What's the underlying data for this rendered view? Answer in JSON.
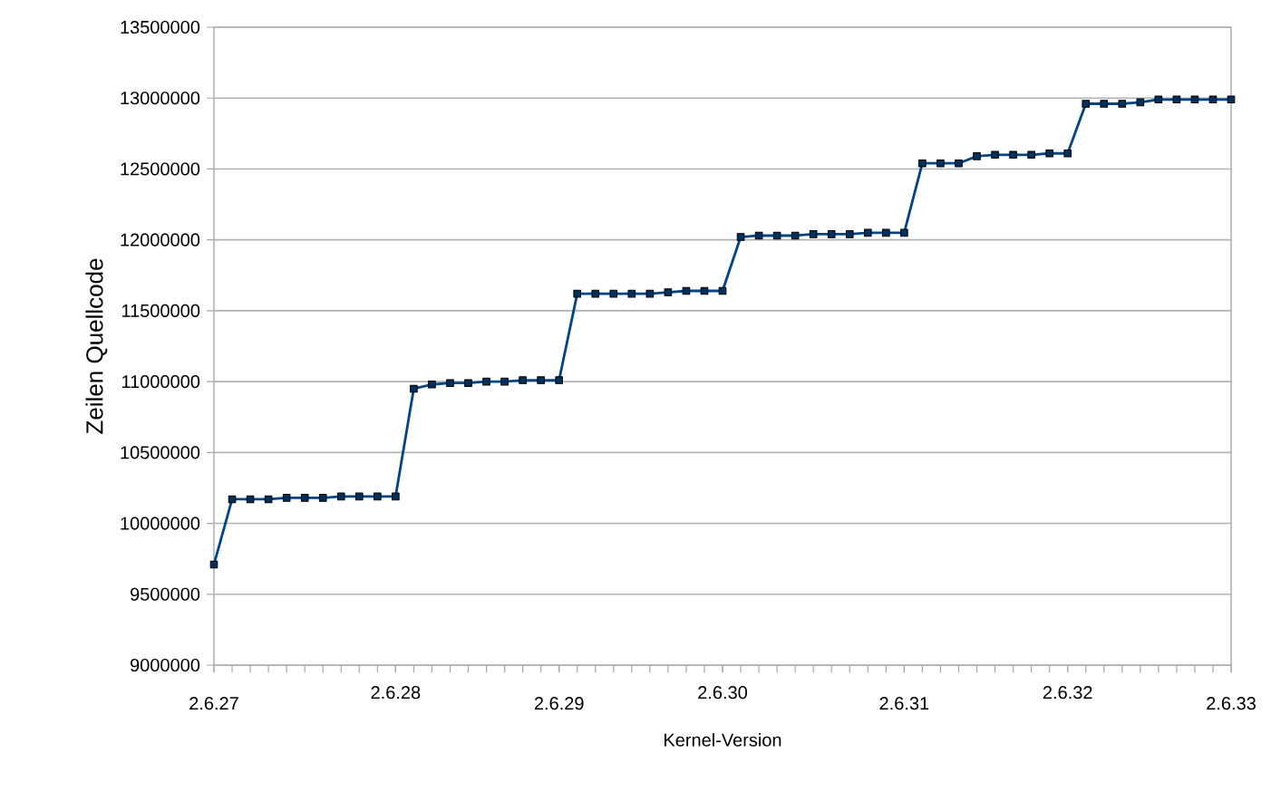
{
  "chart_data": {
    "type": "line",
    "xlabel": "Kernel-Version",
    "ylabel": "Zeilen Quellcode",
    "categories": [
      "2.6.27",
      null,
      null,
      null,
      null,
      null,
      null,
      null,
      null,
      null,
      "2.6.28",
      null,
      null,
      null,
      null,
      null,
      null,
      null,
      null,
      "2.6.29",
      null,
      null,
      null,
      null,
      null,
      null,
      null,
      null,
      "2.6.30",
      null,
      null,
      null,
      null,
      null,
      null,
      null,
      null,
      null,
      "2.6.31",
      null,
      null,
      null,
      null,
      null,
      null,
      null,
      null,
      "2.6.32",
      null,
      null,
      null,
      null,
      null,
      null,
      null,
      null,
      "2.6.33"
    ],
    "series": [
      {
        "color": "#004586",
        "values": [
          9710000,
          10170000,
          10170000,
          10170000,
          10180000,
          10180000,
          10180000,
          10190000,
          10190000,
          10190000,
          10190000,
          10950000,
          10980000,
          10990000,
          10990000,
          11000000,
          11000000,
          11010000,
          11010000,
          11010000,
          11620000,
          11620000,
          11620000,
          11620000,
          11620000,
          11630000,
          11640000,
          11640000,
          11640000,
          12020000,
          12030000,
          12030000,
          12030000,
          12040000,
          12040000,
          12040000,
          12050000,
          12050000,
          12050000,
          12540000,
          12540000,
          12540000,
          12590000,
          12600000,
          12600000,
          12600000,
          12610000,
          12610000,
          12960000,
          12960000,
          12960000,
          12970000,
          12990000,
          12990000,
          12990000,
          12990000,
          12990000
        ]
      }
    ],
    "ylim": [
      9000000,
      13500000
    ],
    "yticks": [
      9000000,
      9500000,
      10000000,
      10500000,
      11000000,
      11500000,
      12000000,
      12500000,
      13000000,
      13500000
    ],
    "grid": "y",
    "marker": "square",
    "line_style": "solid"
  }
}
